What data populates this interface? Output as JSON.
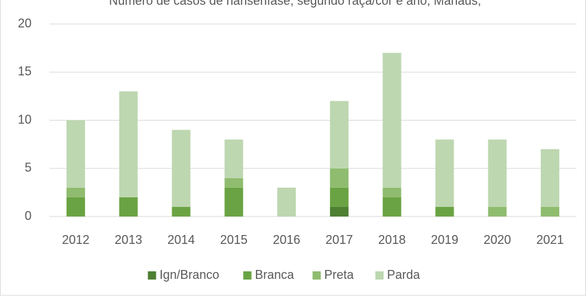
{
  "chart_data": {
    "type": "stacked_bar",
    "title": "Número de casos de hanseníase, segundo raça/cor e ano, Manaus,",
    "categories": [
      "2012",
      "2013",
      "2014",
      "2015",
      "2016",
      "2017",
      "2018",
      "2019",
      "2020",
      "2021"
    ],
    "series": [
      {
        "name": "Ign/Branco",
        "color": "#4e7f32",
        "values": [
          0,
          0,
          0,
          0,
          0,
          1,
          0,
          0,
          0,
          0
        ]
      },
      {
        "name": "Branca",
        "color": "#6aa343",
        "values": [
          2,
          2,
          1,
          3,
          0,
          2,
          2,
          1,
          0,
          0
        ]
      },
      {
        "name": "Preta",
        "color": "#8fbc6f",
        "values": [
          1,
          0,
          0,
          1,
          0,
          2,
          1,
          0,
          1,
          1
        ]
      },
      {
        "name": "Parda",
        "color": "#bdd7b0",
        "values": [
          7,
          11,
          8,
          4,
          3,
          7,
          14,
          7,
          7,
          6
        ]
      }
    ],
    "ylim": [
      0,
      20
    ],
    "yticks": [
      0,
      5,
      10,
      15,
      20
    ],
    "grid": true,
    "legend": "bottom"
  }
}
